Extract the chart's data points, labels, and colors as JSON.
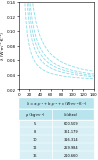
{
  "title": "",
  "xlabel": "ρ (kg·m⁻³)",
  "ylabel": "λ (W·m⁻¹·K⁻¹)",
  "xlim": [
    0,
    140
  ],
  "ylim": [
    0.02,
    0.14
  ],
  "xticks": [
    0,
    20,
    40,
    60,
    80,
    100,
    120,
    140
  ],
  "yticks": [
    0.02,
    0.04,
    0.06,
    0.08,
    0.1,
    0.12,
    0.14
  ],
  "curve_color": "#7fd8e8",
  "fiber_finenesses": [
    5,
    8,
    10,
    12,
    16
  ],
  "table_header_col1": "ρ (kg·m⁻³)",
  "table_header_col2": "λ₀(dtex)",
  "table_header": "λ = a·ρ⁻¹ + b·ρ⁻² + c (W·m⁻¹·K⁻¹)",
  "table_rows": [
    [
      5,
      "600.509"
    ],
    [
      8,
      "361.179"
    ],
    [
      10,
      "316.314"
    ],
    [
      12,
      "259.984"
    ],
    [
      16,
      "210.660"
    ]
  ],
  "table_bg": "#d8f0f5",
  "table_header_bg": "#b8e4ee"
}
